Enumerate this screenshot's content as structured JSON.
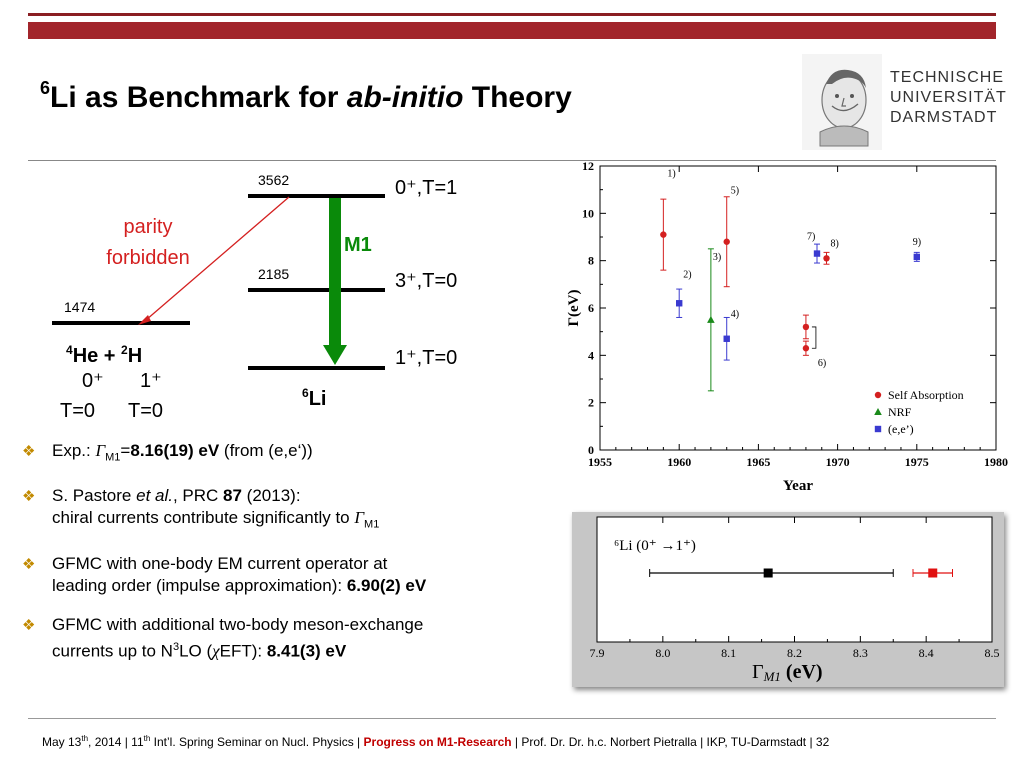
{
  "title": {
    "sup": "6",
    "part1": "Li as Benchmark for ",
    "italic": "ab-initio",
    "part2": " Theory"
  },
  "logo": {
    "line1": "TECHNISCHE",
    "line2": "UNIVERSITÄT",
    "line3": "DARMSTADT"
  },
  "level_scheme": {
    "levels": [
      {
        "energy": "3562",
        "label": "0⁺,T=1"
      },
      {
        "energy": "2185",
        "label": "3⁺,T=0"
      },
      {
        "energy": "",
        "label": "1⁺,T=0"
      }
    ],
    "threshold": {
      "energy": "1474"
    },
    "m1_label": "M1",
    "parity_line1": "parity",
    "parity_line2": "forbidden",
    "he_prefix_sup": "4",
    "he_text": "He + ",
    "h_sup": "2",
    "h_text": "H",
    "he_spin": "0⁺",
    "h_spin": "1⁺",
    "he_t": "T=0",
    "h_t": "T=0",
    "li_sup": "6",
    "li_text": "Li"
  },
  "chart_data": [
    {
      "type": "scatter",
      "title": "",
      "xlabel": "Year",
      "ylabel": "Γ(eV)",
      "xlim": [
        1955,
        1980
      ],
      "ylim": [
        0,
        12
      ],
      "xticks": [
        1955,
        1960,
        1965,
        1970,
        1975,
        1980
      ],
      "yticks": [
        0,
        2,
        4,
        6,
        8,
        10,
        12
      ],
      "legend_position": "bottom-right",
      "series": [
        {
          "name": "Self Absorption",
          "color": "#d42020",
          "marker": "circle",
          "points": [
            {
              "x": 1959,
              "y": 9.1,
              "err": 1.5,
              "label": "1)"
            },
            {
              "x": 1963,
              "y": 8.8,
              "err": 1.9,
              "label": "5)"
            },
            {
              "x": 1968,
              "y": 5.2,
              "err": 0.5,
              "label": ""
            },
            {
              "x": 1968,
              "y": 4.3,
              "err": 0.3,
              "label": "6)"
            },
            {
              "x": 1969.3,
              "y": 8.1,
              "err": 0.25,
              "label": "8)"
            }
          ]
        },
        {
          "name": "NRF",
          "color": "#1a8a1a",
          "marker": "triangle",
          "points": [
            {
              "x": 1962,
              "y": 5.5,
              "err": 3.0,
              "label": "3)"
            }
          ]
        },
        {
          "name": "(e,e’)",
          "color": "#3a3ad0",
          "marker": "square",
          "points": [
            {
              "x": 1960,
              "y": 6.2,
              "err": 0.6,
              "label": "2)"
            },
            {
              "x": 1963,
              "y": 4.7,
              "err": 0.9,
              "label": "4)"
            },
            {
              "x": 1968.7,
              "y": 8.3,
              "err": 0.4,
              "label": "7)"
            },
            {
              "x": 1975,
              "y": 8.16,
              "err": 0.19,
              "label": "9)"
            }
          ]
        }
      ]
    },
    {
      "type": "scatter",
      "title": "",
      "annotation": "⁶Li (0⁺ →1⁺)",
      "xlabel_main": "Γ",
      "xlabel_sub": "M1",
      "xlabel_unit": " (eV)",
      "xlim": [
        7.9,
        8.5
      ],
      "xticks": [
        7.9,
        8.0,
        8.1,
        8.2,
        8.3,
        8.4,
        8.5
      ],
      "tick_labels": [
        "7.9",
        "8.0",
        "8.1",
        "8.2",
        "8.3",
        "8.4",
        "8.5"
      ],
      "series": [
        {
          "name": "",
          "color": "#000000",
          "points": [
            {
              "x": 8.16,
              "xerr_low": 0.18,
              "xerr_high": 0.19
            }
          ]
        },
        {
          "name": "",
          "color": "#e01010",
          "points": [
            {
              "x": 8.41,
              "xerr_low": 0.03,
              "xerr_high": 0.03
            }
          ]
        }
      ]
    }
  ],
  "bullets": {
    "b1_pre": "Exp.: ",
    "b1_g": "Γ",
    "b1_gsub": "M1",
    "b1_eq": "=",
    "b1_bold": "8.16(19) eV",
    "b1_post": " (from (e,e‘))",
    "b2_pre": "S. Pastore ",
    "b2_it": "et al.",
    "b2_mid": ", PRC ",
    "b2_bold": "87",
    "b2_post": " (2013):",
    "b2_line2": "chiral currents contribute significantly to ",
    "b2_g": "Γ",
    "b2_gsub": "M1",
    "b3_line1": "GFMC with one-body EM current operator at",
    "b3_line2": "leading order (impulse approximation): ",
    "b3_bold": "6.90(2) eV",
    "b4_line1": "GFMC with additional two-body meson-exchange",
    "b4_line2a": "currents up to N",
    "b4_sup": "3",
    "b4_line2b": "LO (",
    "b4_chi": "χ",
    "b4_line2c": "EFT): ",
    "b4_bold": "8.41(3) eV"
  },
  "footer": {
    "date_a": "May 13",
    "date_sup": "th",
    "date_b": ", 2014 | 11",
    "conf_sup": "th",
    "conf": " Int’l. Spring Seminar on Nucl. Physics | ",
    "highlight": "Progress on M1-Research",
    "rest": " |  Prof. Dr. Dr. h.c. Norbert Pietralla  | IKP, TU-Darmstadt |  ",
    "page": "32"
  }
}
